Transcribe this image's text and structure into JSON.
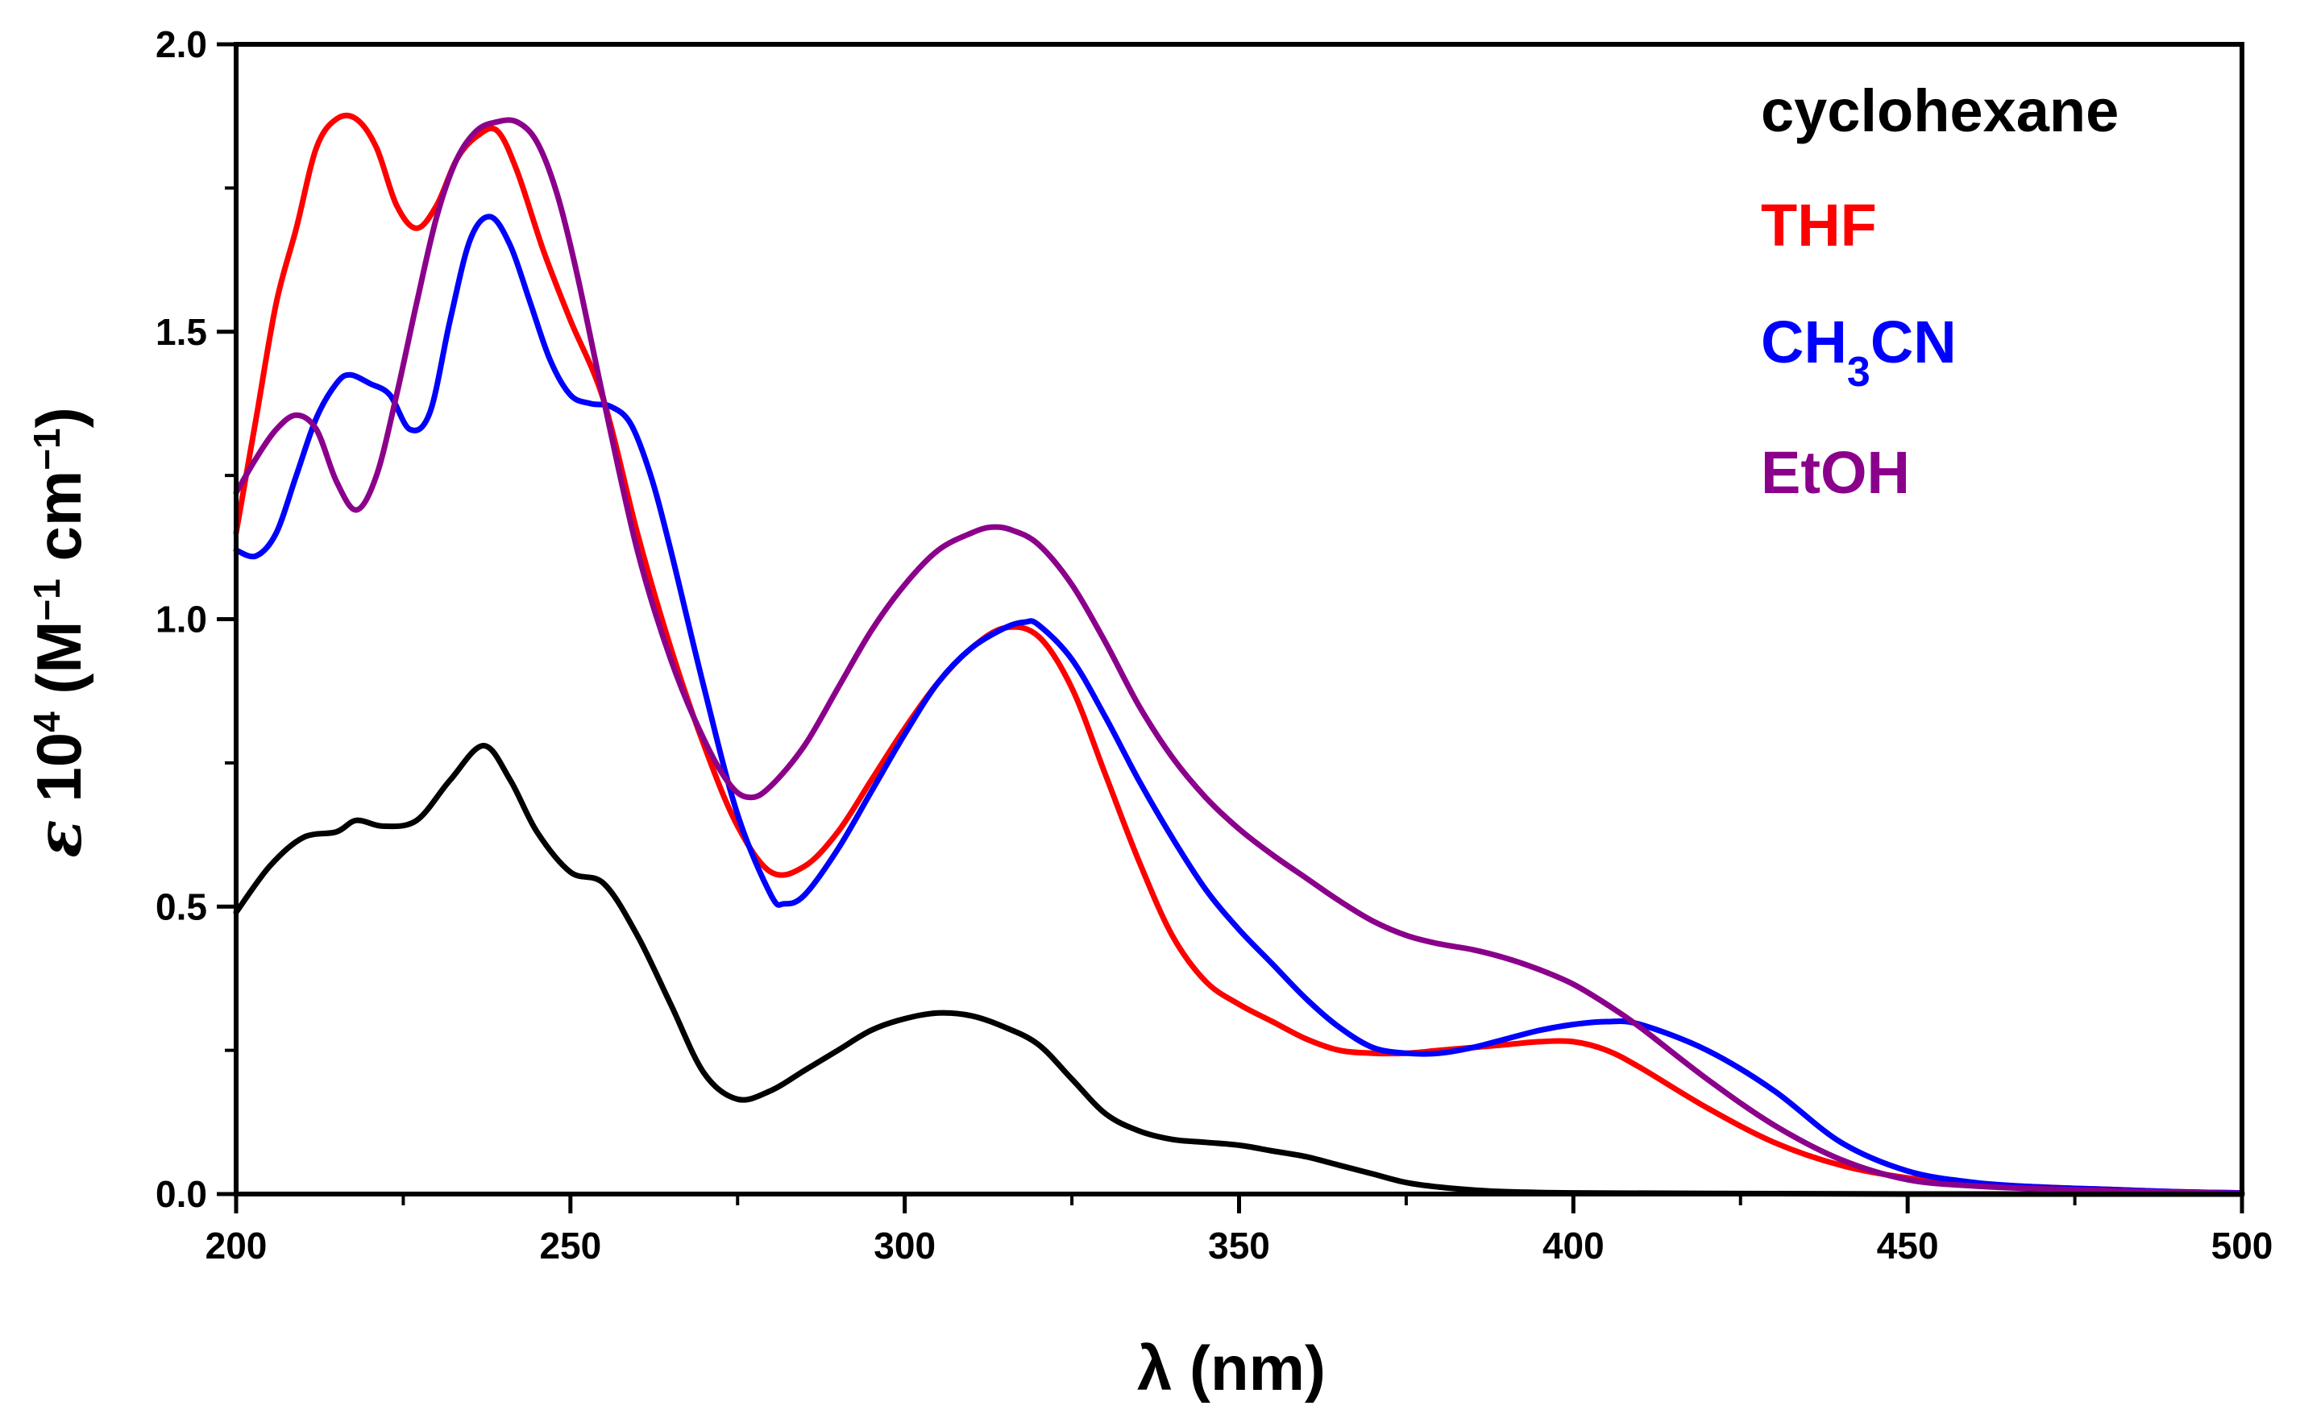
{
  "chart_data": {
    "type": "line",
    "title": "",
    "xlabel": "λ (nm)",
    "ylabel": {
      "symbol": "ε",
      "base": "10",
      "exp": "4",
      "unit_open": "(M",
      "unit_exp1": "−1",
      "unit_mid": " cm",
      "unit_exp2": "−1",
      "unit_close": ")"
    },
    "xlim": [
      200,
      500
    ],
    "ylim": [
      0.0,
      2.0
    ],
    "x_ticks": [
      200,
      250,
      300,
      350,
      400,
      450,
      500
    ],
    "x_tick_labels": [
      "200",
      "250",
      "300",
      "350",
      "400",
      "450",
      "500"
    ],
    "y_ticks": [
      0.0,
      0.5,
      1.0,
      1.5,
      2.0
    ],
    "y_tick_labels": [
      "0.0",
      "0.5",
      "1.0",
      "1.5",
      "2.0"
    ],
    "grid": false,
    "legend_position": "top-right",
    "series": [
      {
        "name": "cyclohexane",
        "legend": {
          "text": "cyclohexane"
        },
        "color": "#000000",
        "x": [
          200,
          205,
          210,
          215,
          218,
          222,
          227,
          232,
          237,
          241,
          245,
          250,
          255,
          260,
          265,
          270,
          275,
          280,
          285,
          290,
          295,
          300,
          305,
          310,
          315,
          320,
          325,
          330,
          335,
          340,
          345,
          350,
          355,
          360,
          365,
          370,
          375,
          380,
          385,
          390,
          400,
          420,
          450,
          500
        ],
        "y": [
          0.49,
          0.57,
          0.62,
          0.63,
          0.65,
          0.64,
          0.65,
          0.72,
          0.78,
          0.72,
          0.63,
          0.56,
          0.54,
          0.45,
          0.33,
          0.21,
          0.165,
          0.18,
          0.215,
          0.25,
          0.285,
          0.305,
          0.315,
          0.31,
          0.29,
          0.26,
          0.2,
          0.14,
          0.11,
          0.095,
          0.09,
          0.085,
          0.075,
          0.065,
          0.05,
          0.035,
          0.02,
          0.012,
          0.007,
          0.004,
          0.002,
          0.001,
          0.0,
          0.0
        ]
      },
      {
        "name": "THF",
        "legend": {
          "text": "THF"
        },
        "color": "#ff0000",
        "x": [
          200,
          203,
          206,
          209,
          212,
          215,
          218,
          221,
          224,
          227,
          230,
          233,
          236,
          239,
          242,
          246,
          250,
          255,
          260,
          265,
          270,
          275,
          280,
          285,
          290,
          295,
          300,
          305,
          310,
          315,
          320,
          325,
          330,
          335,
          340,
          345,
          350,
          355,
          360,
          365,
          370,
          375,
          380,
          385,
          390,
          395,
          400,
          405,
          410,
          420,
          430,
          440,
          450,
          460,
          470,
          480,
          490,
          500
        ],
        "y": [
          1.15,
          1.35,
          1.55,
          1.68,
          1.82,
          1.87,
          1.87,
          1.82,
          1.72,
          1.68,
          1.72,
          1.8,
          1.84,
          1.85,
          1.78,
          1.64,
          1.52,
          1.38,
          1.15,
          0.95,
          0.78,
          0.64,
          0.56,
          0.57,
          0.63,
          0.72,
          0.81,
          0.89,
          0.95,
          0.985,
          0.97,
          0.88,
          0.73,
          0.58,
          0.45,
          0.37,
          0.33,
          0.3,
          0.27,
          0.25,
          0.245,
          0.245,
          0.25,
          0.255,
          0.26,
          0.265,
          0.265,
          0.25,
          0.22,
          0.15,
          0.09,
          0.05,
          0.028,
          0.018,
          0.012,
          0.008,
          0.004,
          0.002
        ]
      },
      {
        "name": "CH3CN",
        "legend": {
          "text": "CH",
          "sub": "3",
          "tail": "CN"
        },
        "color": "#0000ff",
        "x": [
          200,
          203,
          206,
          209,
          212,
          215,
          217,
          220,
          223,
          226,
          229,
          232,
          235,
          238,
          241,
          244,
          247,
          250,
          253,
          256,
          259,
          262,
          265,
          270,
          275,
          280,
          282,
          285,
          290,
          295,
          300,
          305,
          310,
          315,
          318,
          320,
          325,
          330,
          335,
          340,
          345,
          350,
          355,
          360,
          365,
          370,
          375,
          380,
          385,
          390,
          395,
          400,
          405,
          410,
          420,
          430,
          440,
          450,
          460,
          470,
          480,
          490,
          500
        ],
        "y": [
          1.12,
          1.11,
          1.15,
          1.25,
          1.35,
          1.41,
          1.425,
          1.41,
          1.39,
          1.33,
          1.36,
          1.52,
          1.66,
          1.7,
          1.65,
          1.55,
          1.45,
          1.39,
          1.375,
          1.37,
          1.34,
          1.25,
          1.12,
          0.88,
          0.66,
          0.52,
          0.505,
          0.52,
          0.6,
          0.7,
          0.8,
          0.89,
          0.95,
          0.985,
          0.995,
          0.99,
          0.93,
          0.83,
          0.72,
          0.62,
          0.53,
          0.46,
          0.4,
          0.34,
          0.29,
          0.255,
          0.245,
          0.245,
          0.255,
          0.27,
          0.285,
          0.295,
          0.3,
          0.295,
          0.25,
          0.18,
          0.09,
          0.04,
          0.02,
          0.012,
          0.008,
          0.004,
          0.002
        ]
      },
      {
        "name": "EtOH",
        "legend": {
          "text": "EtOH"
        },
        "color": "#8b008b",
        "x": [
          200,
          203,
          206,
          209,
          212,
          215,
          218,
          221,
          224,
          227,
          230,
          233,
          236,
          239,
          242,
          245,
          248,
          251,
          255,
          260,
          265,
          270,
          274,
          277,
          280,
          285,
          290,
          295,
          300,
          305,
          310,
          313,
          316,
          320,
          325,
          330,
          335,
          340,
          345,
          350,
          355,
          360,
          365,
          370,
          375,
          380,
          385,
          390,
          395,
          400,
          405,
          410,
          420,
          430,
          440,
          450,
          460,
          470,
          480,
          490,
          500
        ],
        "y": [
          1.22,
          1.28,
          1.33,
          1.355,
          1.33,
          1.24,
          1.19,
          1.25,
          1.39,
          1.55,
          1.7,
          1.8,
          1.85,
          1.865,
          1.865,
          1.83,
          1.74,
          1.6,
          1.38,
          1.12,
          0.93,
          0.79,
          0.71,
          0.69,
          0.71,
          0.78,
          0.88,
          0.98,
          1.06,
          1.12,
          1.15,
          1.16,
          1.155,
          1.13,
          1.06,
          0.96,
          0.85,
          0.76,
          0.69,
          0.635,
          0.59,
          0.55,
          0.51,
          0.475,
          0.45,
          0.435,
          0.425,
          0.41,
          0.39,
          0.365,
          0.33,
          0.29,
          0.2,
          0.12,
          0.06,
          0.025,
          0.014,
          0.009,
          0.006,
          0.003,
          0.001
        ]
      }
    ]
  }
}
